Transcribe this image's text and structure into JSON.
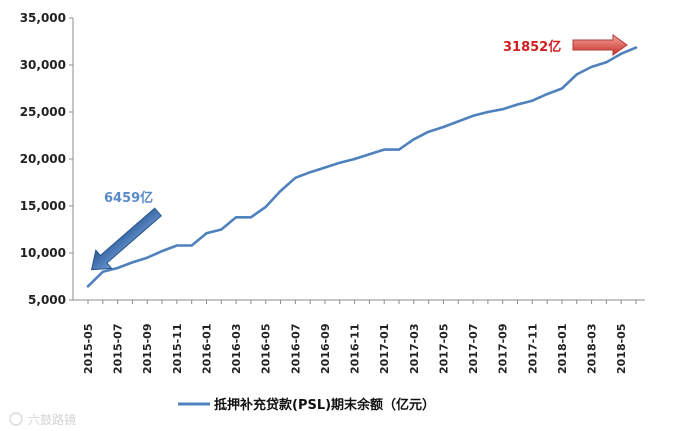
{
  "chart_data": {
    "type": "line",
    "x": [
      "2015-05",
      "2015-06",
      "2015-07",
      "2015-08",
      "2015-09",
      "2015-10",
      "2015-11",
      "2015-12",
      "2016-01",
      "2016-02",
      "2016-03",
      "2016-04",
      "2016-05",
      "2016-06",
      "2016-07",
      "2016-08",
      "2016-09",
      "2016-10",
      "2016-11",
      "2016-12",
      "2017-01",
      "2017-02",
      "2017-03",
      "2017-04",
      "2017-05",
      "2017-06",
      "2017-07",
      "2017-08",
      "2017-09",
      "2017-10",
      "2017-11",
      "2017-12",
      "2018-01",
      "2018-02",
      "2018-03",
      "2018-04",
      "2018-05",
      "2018-06"
    ],
    "x_tick_labels": [
      "2015-05",
      "2015-07",
      "2015-09",
      "2015-11",
      "2016-01",
      "2016-03",
      "2016-05",
      "2016-07",
      "2016-09",
      "2016-11",
      "2017-01",
      "2017-03",
      "2017-05",
      "2017-07",
      "2017-09",
      "2017-11",
      "2018-01",
      "2018-03",
      "2018-05"
    ],
    "series": [
      {
        "name": "抵押补充贷款(PSL)期末余额（亿元）",
        "color": "#4F81BD",
        "values": [
          6459,
          8000,
          8400,
          9000,
          9500,
          10200,
          10800,
          10800,
          12100,
          12500,
          13800,
          13800,
          14900,
          16600,
          18000,
          18600,
          19100,
          19600,
          20000,
          20500,
          21000,
          21000,
          22100,
          22900,
          23400,
          24000,
          24600,
          25000,
          25300,
          25800,
          26200,
          26900,
          27500,
          29000,
          29800,
          30300,
          31200,
          31852
        ]
      }
    ],
    "y_tick_labels": [
      "5,000",
      "10,000",
      "15,000",
      "20,000",
      "25,000",
      "30,000",
      "35,000"
    ],
    "ylim": [
      5000,
      35000
    ],
    "title": "",
    "xlabel": "",
    "ylabel": "",
    "legend": "bottom-center",
    "grid": false
  },
  "annotations": {
    "start_label": "6459亿",
    "end_label": "31852亿",
    "start_arrow_color": "#3D6EB4",
    "end_arrow_color": "#D9433F"
  },
  "legend_label": "抵押补充贷款(PSL)期末余额（亿元）",
  "watermark": "六鼓路镜"
}
